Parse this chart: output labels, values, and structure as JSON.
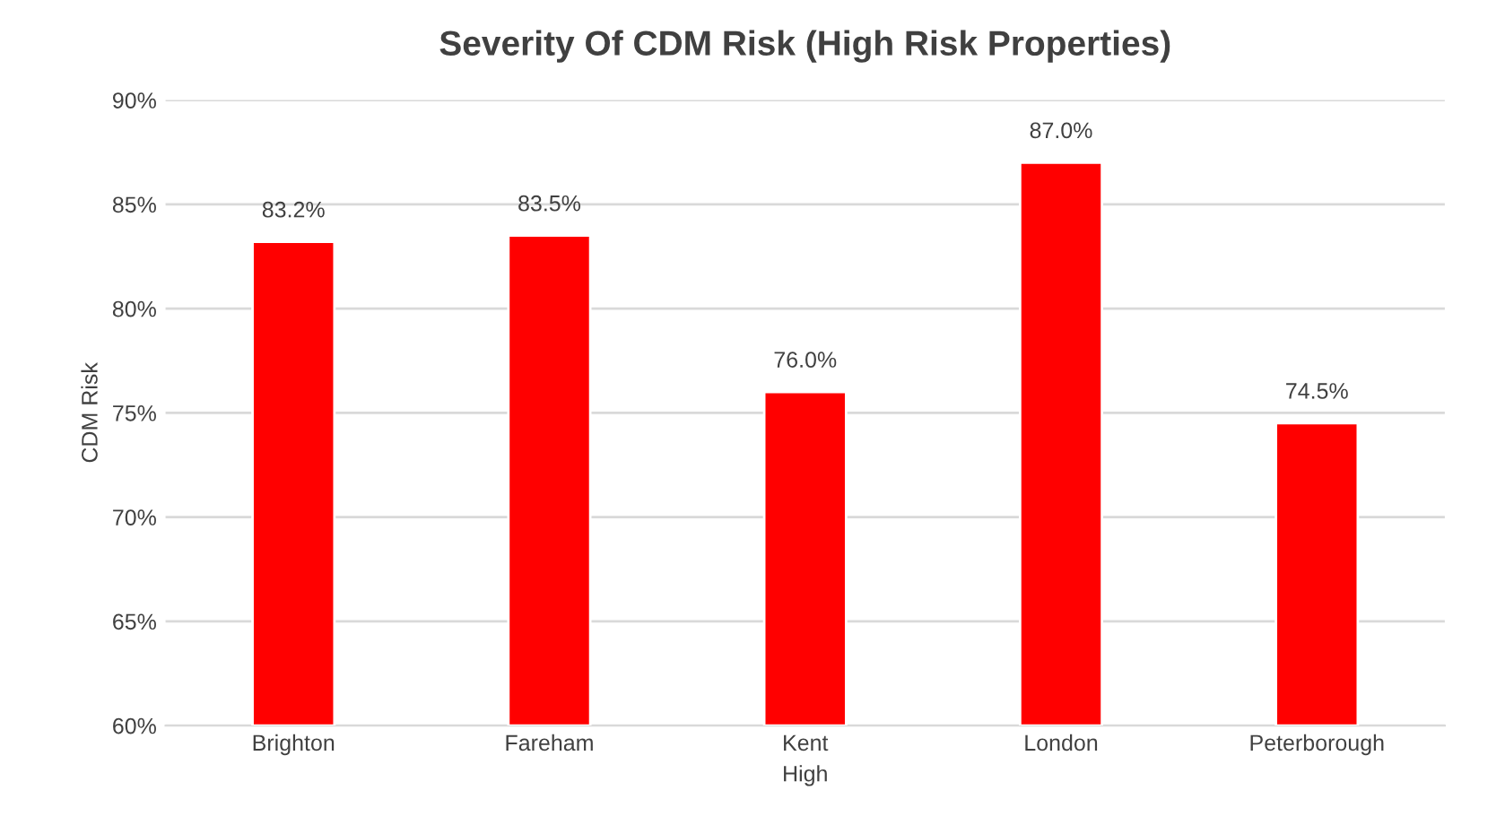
{
  "chart_data": {
    "type": "bar",
    "title": "Severity Of CDM Risk (High Risk Properties)",
    "xlabel": "High",
    "ylabel": "CDM Risk",
    "categories": [
      "Brighton",
      "Fareham",
      "Kent",
      "London",
      "Peterborough"
    ],
    "values": [
      83.2,
      83.5,
      76.0,
      87.0,
      74.5
    ],
    "value_labels": [
      "83.2%",
      "83.5%",
      "76.0%",
      "87.0%",
      "74.5%"
    ],
    "color": "#ff0000",
    "ylim": [
      60,
      90
    ],
    "yticks": [
      {
        "value": 60,
        "label": "60%"
      },
      {
        "value": 65,
        "label": "65%"
      },
      {
        "value": 70,
        "label": "70%"
      },
      {
        "value": 75,
        "label": "75%"
      },
      {
        "value": 80,
        "label": "80%"
      },
      {
        "value": 85,
        "label": "85%"
      },
      {
        "value": 90,
        "label": "90%"
      }
    ],
    "grid": "y",
    "legend": false
  }
}
